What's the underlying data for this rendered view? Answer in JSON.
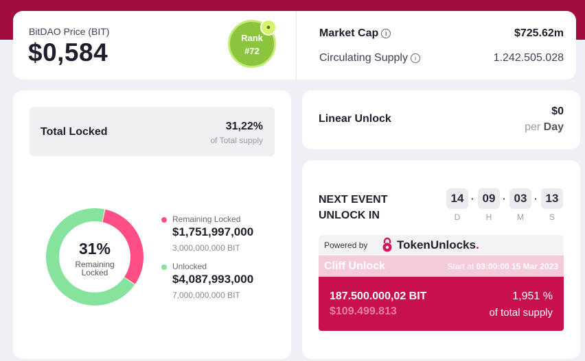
{
  "price": {
    "label": "BitDAO Price (BIT)",
    "value": "$0,584"
  },
  "rank": {
    "label": "Rank",
    "value": "#72"
  },
  "market": {
    "market_cap_label": "Market Cap",
    "market_cap_value": "$725.62m",
    "supply_label": "Circulating Supply",
    "supply_value": "1.242.505.028"
  },
  "total_locked": {
    "label": "Total Locked",
    "pct": "31,22%",
    "sub": "of Total supply"
  },
  "donut": {
    "center_pct": "31%",
    "center_line1": "Remaining",
    "center_line2": "Locked",
    "locked_fraction": 0.31,
    "locked_color": "#ff4d85",
    "unlocked_color": "#85e39e"
  },
  "legend": [
    {
      "label": "Remaining Locked",
      "value": "$1,751,997,000",
      "bit": "3,000,000,000 BIT"
    },
    {
      "label": "Unlocked",
      "value": "$4,087,993,000",
      "bit": "7,000,000,000 BIT"
    }
  ],
  "linear": {
    "label": "Linear Unlock",
    "value": "$0",
    "per": "per",
    "unit": "Day"
  },
  "event": {
    "title1": "NEXT EVENT",
    "title2": "UNLOCK IN",
    "countdown": [
      {
        "value": "14",
        "unit": "D"
      },
      {
        "value": "09",
        "unit": "H"
      },
      {
        "value": "03",
        "unit": "M"
      },
      {
        "value": "13",
        "unit": "S"
      }
    ]
  },
  "powered": {
    "label": "Powered by",
    "brand_a": "Token",
    "brand_b": "Unlocks",
    "brand_dot": "."
  },
  "cliff": {
    "title": "Cliff Unlock",
    "start_prefix": "Start at",
    "start_time": "03:00:00 15 Mar 2023",
    "amount": "187.500.000,02 BIT",
    "usd": "$109.499.813",
    "pct": "1,951 %",
    "of_total": "of total supply"
  }
}
